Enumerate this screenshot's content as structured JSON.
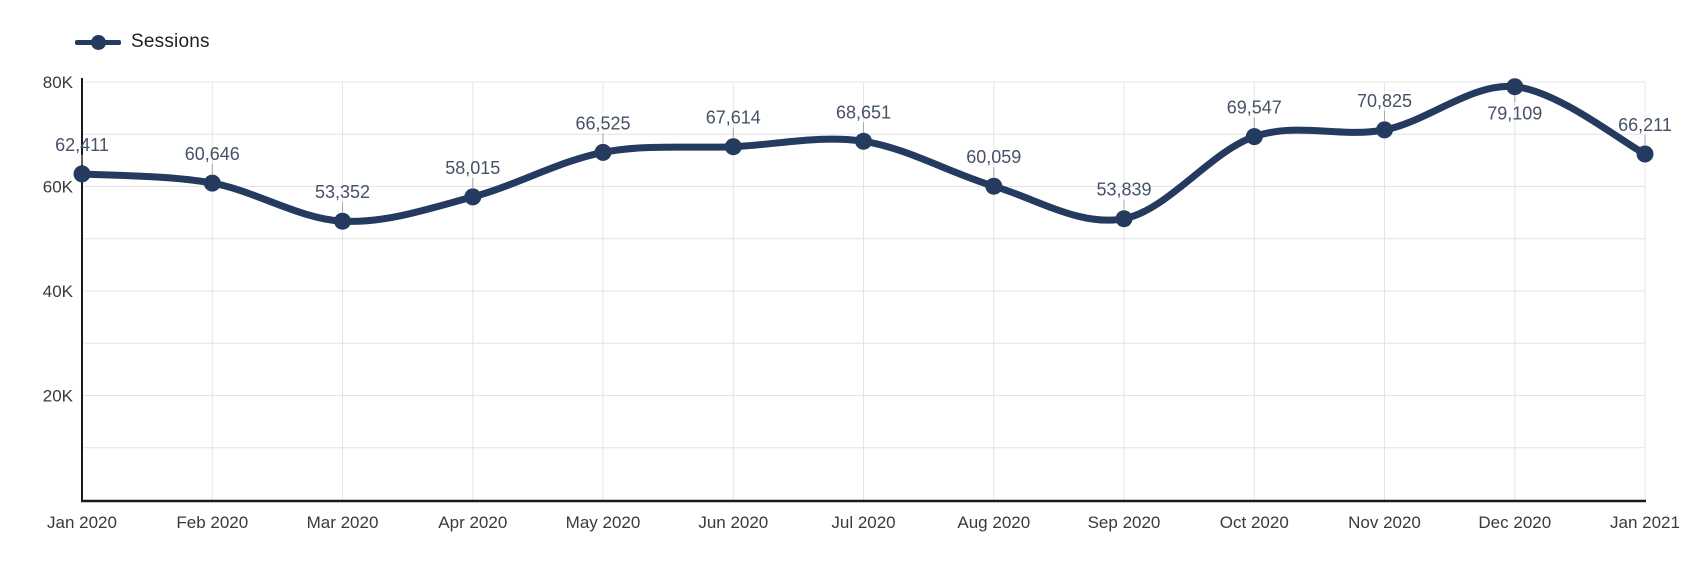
{
  "chart_data": {
    "type": "line",
    "title": "",
    "x": [
      "Jan 2020",
      "Feb 2020",
      "Mar 2020",
      "Apr 2020",
      "May 2020",
      "Jun 2020",
      "Jul 2020",
      "Aug 2020",
      "Sep 2020",
      "Oct 2020",
      "Nov 2020",
      "Dec 2020",
      "Jan 2021"
    ],
    "series": [
      {
        "name": "Sessions",
        "values": [
          62411,
          60646,
          53352,
          58015,
          66525,
          67614,
          68651,
          60059,
          53839,
          69547,
          70825,
          79109,
          66211
        ]
      }
    ],
    "data_labels": [
      "62,411",
      "60,646",
      "53,352",
      "58,015",
      "66,525",
      "67,614",
      "68,651",
      "60,059",
      "53,839",
      "69,547",
      "70,825",
      "79,109",
      "66,211"
    ],
    "ylim": [
      0,
      80000
    ],
    "y_tick_values": [
      20000,
      40000,
      60000,
      80000
    ],
    "y_tick_labels": [
      "20K",
      "40K",
      "60K",
      "80K"
    ],
    "y_grid_step": 10000,
    "grid": true,
    "smooth": true,
    "legend_position": "top-left",
    "colors": {
      "line": "#243a5e",
      "point": "#243a5e",
      "value_label": "#465268",
      "axis_label": "#3a3a3a",
      "gridline": "#e4e4e4",
      "axis": "#1a1a1a",
      "leader_tick": "#a8a8a8"
    }
  }
}
